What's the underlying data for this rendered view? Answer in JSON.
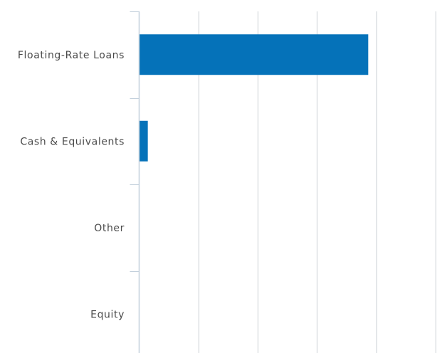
{
  "chart_data": {
    "type": "bar",
    "orientation": "horizontal",
    "categories": [
      "Floating-Rate Loans",
      "Cash & Equivalents",
      "Other",
      "Equity"
    ],
    "values": [
      96.5,
      3.5,
      0.0,
      0.0
    ],
    "xlim": [
      0,
      125
    ],
    "grid": true,
    "bar_color": "#0572b9",
    "gridline_color": "#c9ced3",
    "axis_color": "#c3d0dc",
    "label_color": "#4a4a4a"
  }
}
